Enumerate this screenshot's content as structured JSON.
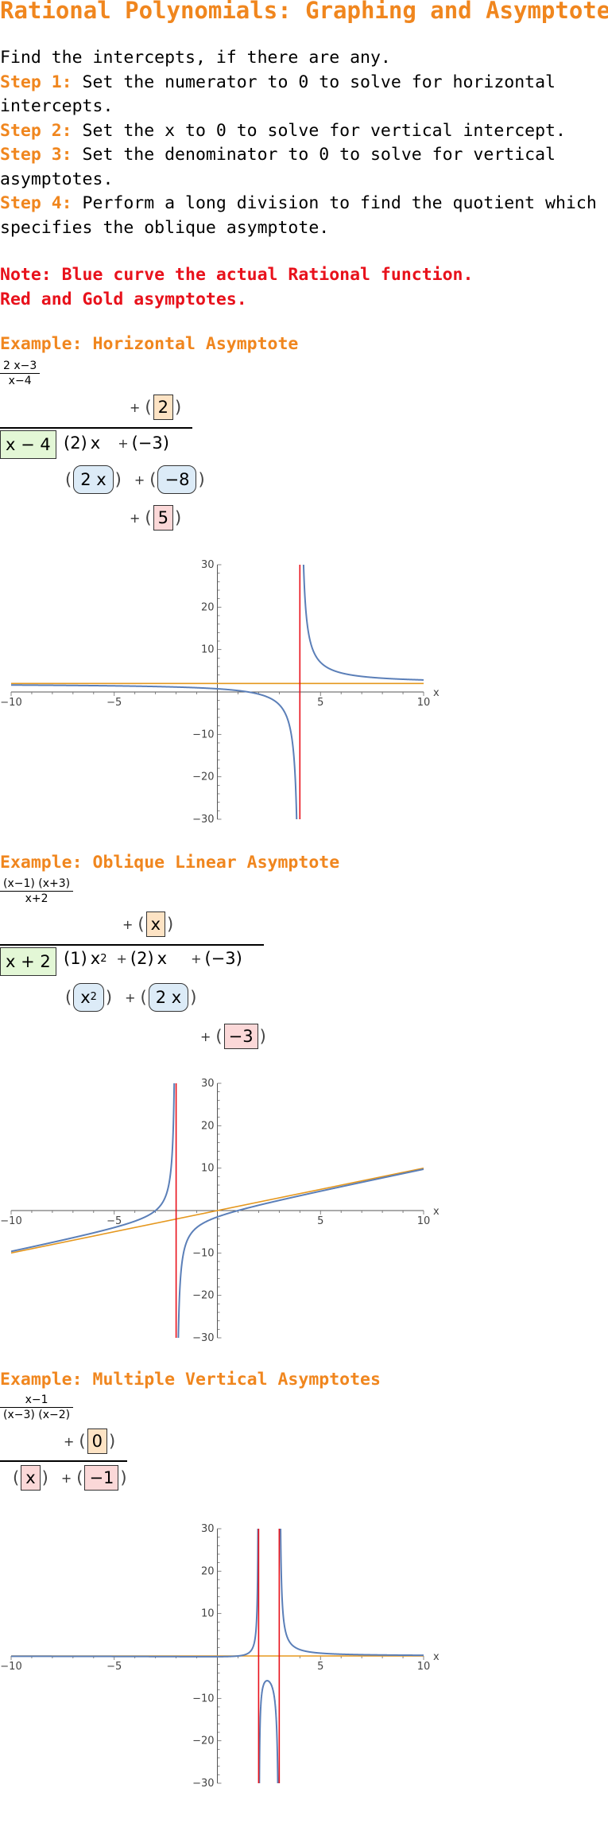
{
  "title": "Rational Polynomials: Graphing and Asymptotes",
  "intro": {
    "line0": "Find the intercepts, if there are any.",
    "steps": [
      {
        "label": "Step 1:",
        "text": " Set the numerator to 0 to solve for horizontal intercepts."
      },
      {
        "label": "Step 2:",
        "text": " Set the x to 0 to solve for vertical intercept."
      },
      {
        "label": "Step 3:",
        "text": " Set the denominator to 0 to solve for vertical asymptotes."
      },
      {
        "label": "Step 4:",
        "text": " Perform a long division to find the quotient which specifies the oblique asymptote."
      }
    ]
  },
  "note": {
    "line1": "Note: Blue curve the actual Rational function.",
    "line2": "Red and Gold asymptotes."
  },
  "colors": {
    "accent": "#f0861e",
    "note": "#e8111b",
    "curve": "#5b7fb8",
    "vertical_asymptote": "#e8111b",
    "oblique_asymptote": "#e5981f"
  },
  "examples": [
    {
      "heading": "Example: Horizontal Asymptote",
      "fraction": {
        "numerator": "2 x−3",
        "denominator": "x−4"
      },
      "division": {
        "quotient": [
          "+",
          "(",
          "2",
          ")"
        ],
        "divisor": "x − 4",
        "dividend": [
          "(2)",
          "x",
          "+",
          "(−3)"
        ],
        "subtract": [
          "(",
          "2 x",
          ")",
          "+",
          "(",
          "−8",
          ")"
        ],
        "remainder": [
          "+",
          "(",
          "5",
          ")"
        ]
      }
    },
    {
      "heading": "Example: Oblique Linear Asymptote",
      "fraction": {
        "numerator": "(x−1) (x+3)",
        "denominator": "x+2"
      },
      "division": {
        "quotient": [
          "+",
          "(",
          "x",
          ")"
        ],
        "divisor": "x + 2",
        "dividend": [
          "(1)",
          "x",
          "2",
          "+",
          "(2)",
          "x",
          "+",
          "(−3)"
        ],
        "subtract": [
          "(",
          "x",
          "2",
          ")",
          "+",
          "(",
          "2 x",
          ")"
        ],
        "remainder": [
          "+",
          "(",
          "−3",
          ")"
        ]
      }
    },
    {
      "heading": "Example: Multiple Vertical Asymptotes",
      "fraction": {
        "numerator": "x−1",
        "denominator": "(x−3) (x−2)"
      },
      "division": {
        "quotient": [
          "+",
          "(",
          "0",
          ")"
        ],
        "dividend": [
          "(",
          "x",
          ")",
          "+",
          "(",
          "−1",
          ")"
        ]
      }
    }
  ],
  "chart_data": [
    {
      "type": "line",
      "function": "(2x-3)/(x-4)",
      "xlabel": "x",
      "xlim": [
        -10,
        10
      ],
      "ylim": [
        -30,
        30
      ],
      "xticks": [
        -10,
        -5,
        5,
        10
      ],
      "yticks": [
        -30,
        -20,
        -10,
        10,
        20,
        30
      ],
      "xtick_labels": [
        "−10",
        "−5",
        "5",
        "10"
      ],
      "ytick_labels": [
        "−30",
        "−20",
        "−10",
        "10",
        "20",
        "30"
      ],
      "vertical_asymptotes": [
        4
      ],
      "asymptote_line": {
        "slope": 0,
        "intercept": 2
      }
    },
    {
      "type": "line",
      "function": "(x-1)(x+3)/(x+2)",
      "xlabel": "x",
      "xlim": [
        -10,
        10
      ],
      "ylim": [
        -30,
        30
      ],
      "xticks": [
        -10,
        -5,
        5,
        10
      ],
      "yticks": [
        -30,
        -20,
        -10,
        10,
        20,
        30
      ],
      "xtick_labels": [
        "−10",
        "−5",
        "5",
        "10"
      ],
      "ytick_labels": [
        "−30",
        "−20",
        "−10",
        "10",
        "20",
        "30"
      ],
      "vertical_asymptotes": [
        -2
      ],
      "asymptote_line": {
        "slope": 1,
        "intercept": 0
      }
    },
    {
      "type": "line",
      "function": "(x-1)/((x-3)(x-2))",
      "xlabel": "x",
      "xlim": [
        -10,
        10
      ],
      "ylim": [
        -30,
        30
      ],
      "xticks": [
        -10,
        -5,
        5,
        10
      ],
      "yticks": [
        -30,
        -20,
        -10,
        10,
        20,
        30
      ],
      "xtick_labels": [
        "−10",
        "−5",
        "5",
        "10"
      ],
      "ytick_labels": [
        "−30",
        "−20",
        "−10",
        "10",
        "20",
        "30"
      ],
      "vertical_asymptotes": [
        2,
        3
      ],
      "asymptote_line": {
        "slope": 0,
        "intercept": 0
      }
    }
  ]
}
